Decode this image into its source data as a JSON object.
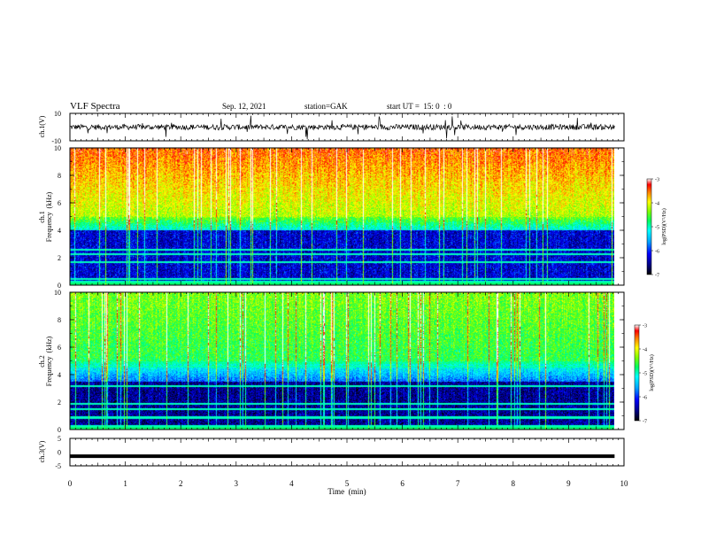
{
  "header": {
    "title": "VLF Spectra",
    "date": "Sep. 12, 2021",
    "station": "station=GAK",
    "start": "start UT =  15: 0  : 0"
  },
  "chart_data": [
    {
      "type": "line",
      "panel": "ch1-waveform",
      "ylabel": "ch.1(V)",
      "ylim": [
        -10,
        10
      ],
      "yticks": [
        "10",
        "-10"
      ],
      "xlim": [
        0,
        10
      ],
      "series": [
        {
          "values_description_level": 0
        }
      ]
    },
    {
      "type": "heatmap",
      "panel": "ch1-spectrogram",
      "ylabel": "ch.1\nFrequency (kHz)",
      "ylabel_lines": [
        "ch.1",
        "Frequency  (kHz)"
      ],
      "ylim": [
        0,
        10
      ],
      "yticks": [
        "0",
        "2",
        "4",
        "6",
        "8",
        "10"
      ],
      "xlim": [
        0,
        10
      ],
      "data_end_min": 9.83,
      "colorbar": {
        "label": "log(PSD)(V²/Hz)",
        "range": [
          -7,
          -3
        ],
        "ticks": [
          "-3",
          "-4",
          "-5",
          "-6",
          "-7"
        ]
      }
    },
    {
      "type": "heatmap",
      "panel": "ch2-spectrogram",
      "ylabel_lines": [
        "ch.2",
        "Frequency  (kHz)"
      ],
      "ylim": [
        0,
        10
      ],
      "yticks": [
        "0",
        "2",
        "4",
        "6",
        "8",
        "10"
      ],
      "xlim": [
        0,
        10
      ],
      "data_end_min": 9.83,
      "colorbar": {
        "label": "log(PSD)(V²/Hz)",
        "range": [
          -7,
          -3
        ],
        "ticks": [
          "-3",
          "-4",
          "-5",
          "-6",
          "-7"
        ]
      }
    },
    {
      "type": "line",
      "panel": "ch3-waveform",
      "ylabel": "ch.3(V)",
      "ylim": [
        -5,
        5
      ],
      "yticks": [
        "5",
        "0",
        "-5"
      ],
      "xlim": [
        0,
        10
      ],
      "series": [
        {
          "values": [
            -1.5,
            -1.5
          ]
        }
      ]
    }
  ],
  "xaxis": {
    "label": "Time  (min)",
    "ticks": [
      "0",
      "1",
      "2",
      "3",
      "4",
      "5",
      "6",
      "7",
      "8",
      "9",
      "10"
    ]
  }
}
